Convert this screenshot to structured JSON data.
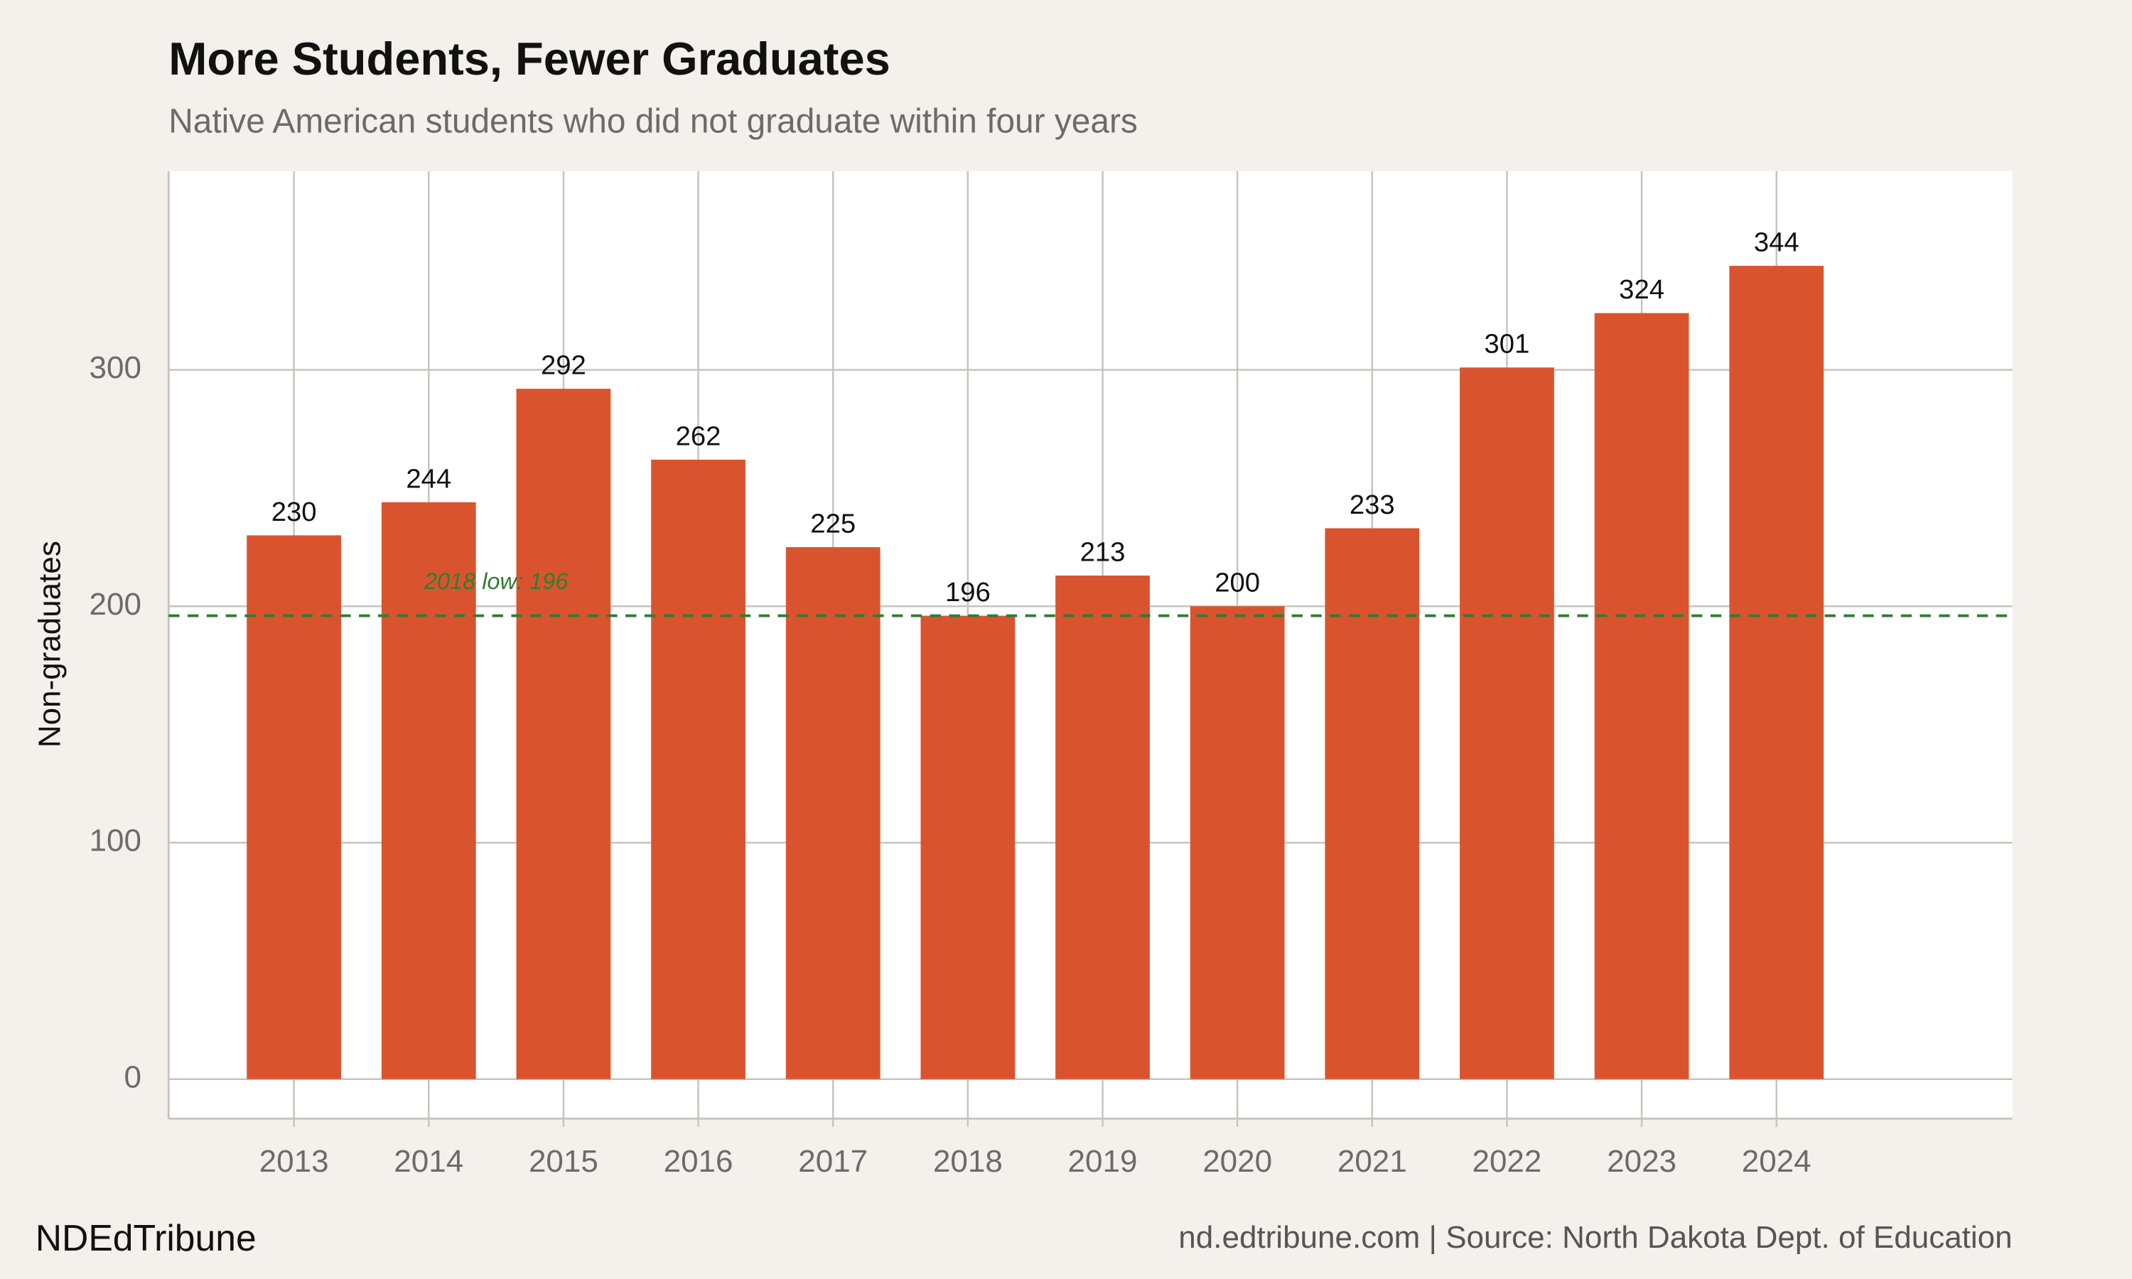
{
  "chart_data": {
    "type": "bar",
    "title": "More Students, Fewer Graduates",
    "subtitle": "Native American students who did not graduate within four years",
    "y_label": "Non-graduates",
    "x": [
      2013,
      2014,
      2015,
      2016,
      2017,
      2018,
      2019,
      2020,
      2021,
      2022,
      2023,
      2024
    ],
    "values": [
      230,
      244,
      292,
      262,
      225,
      196,
      213,
      200,
      233,
      301,
      324,
      344
    ],
    "color": "#d9542e",
    "xlim": [
      2012.07,
      2025.75
    ],
    "xticks": [
      2013,
      2014,
      2015,
      2016,
      2017,
      2018,
      2019,
      2020,
      2021,
      2022,
      2023,
      2024
    ],
    "ylim": [
      -16.7,
      384
    ],
    "yticks": [
      0,
      100,
      200,
      300
    ],
    "grid": true,
    "reference_line": {
      "value": 196,
      "label": "2018 low: 196",
      "color": "#2e7d32"
    },
    "brand": "NDEdTribune",
    "caption": "nd.edtribune.com | Source: North Dakota Dept. of Education"
  }
}
